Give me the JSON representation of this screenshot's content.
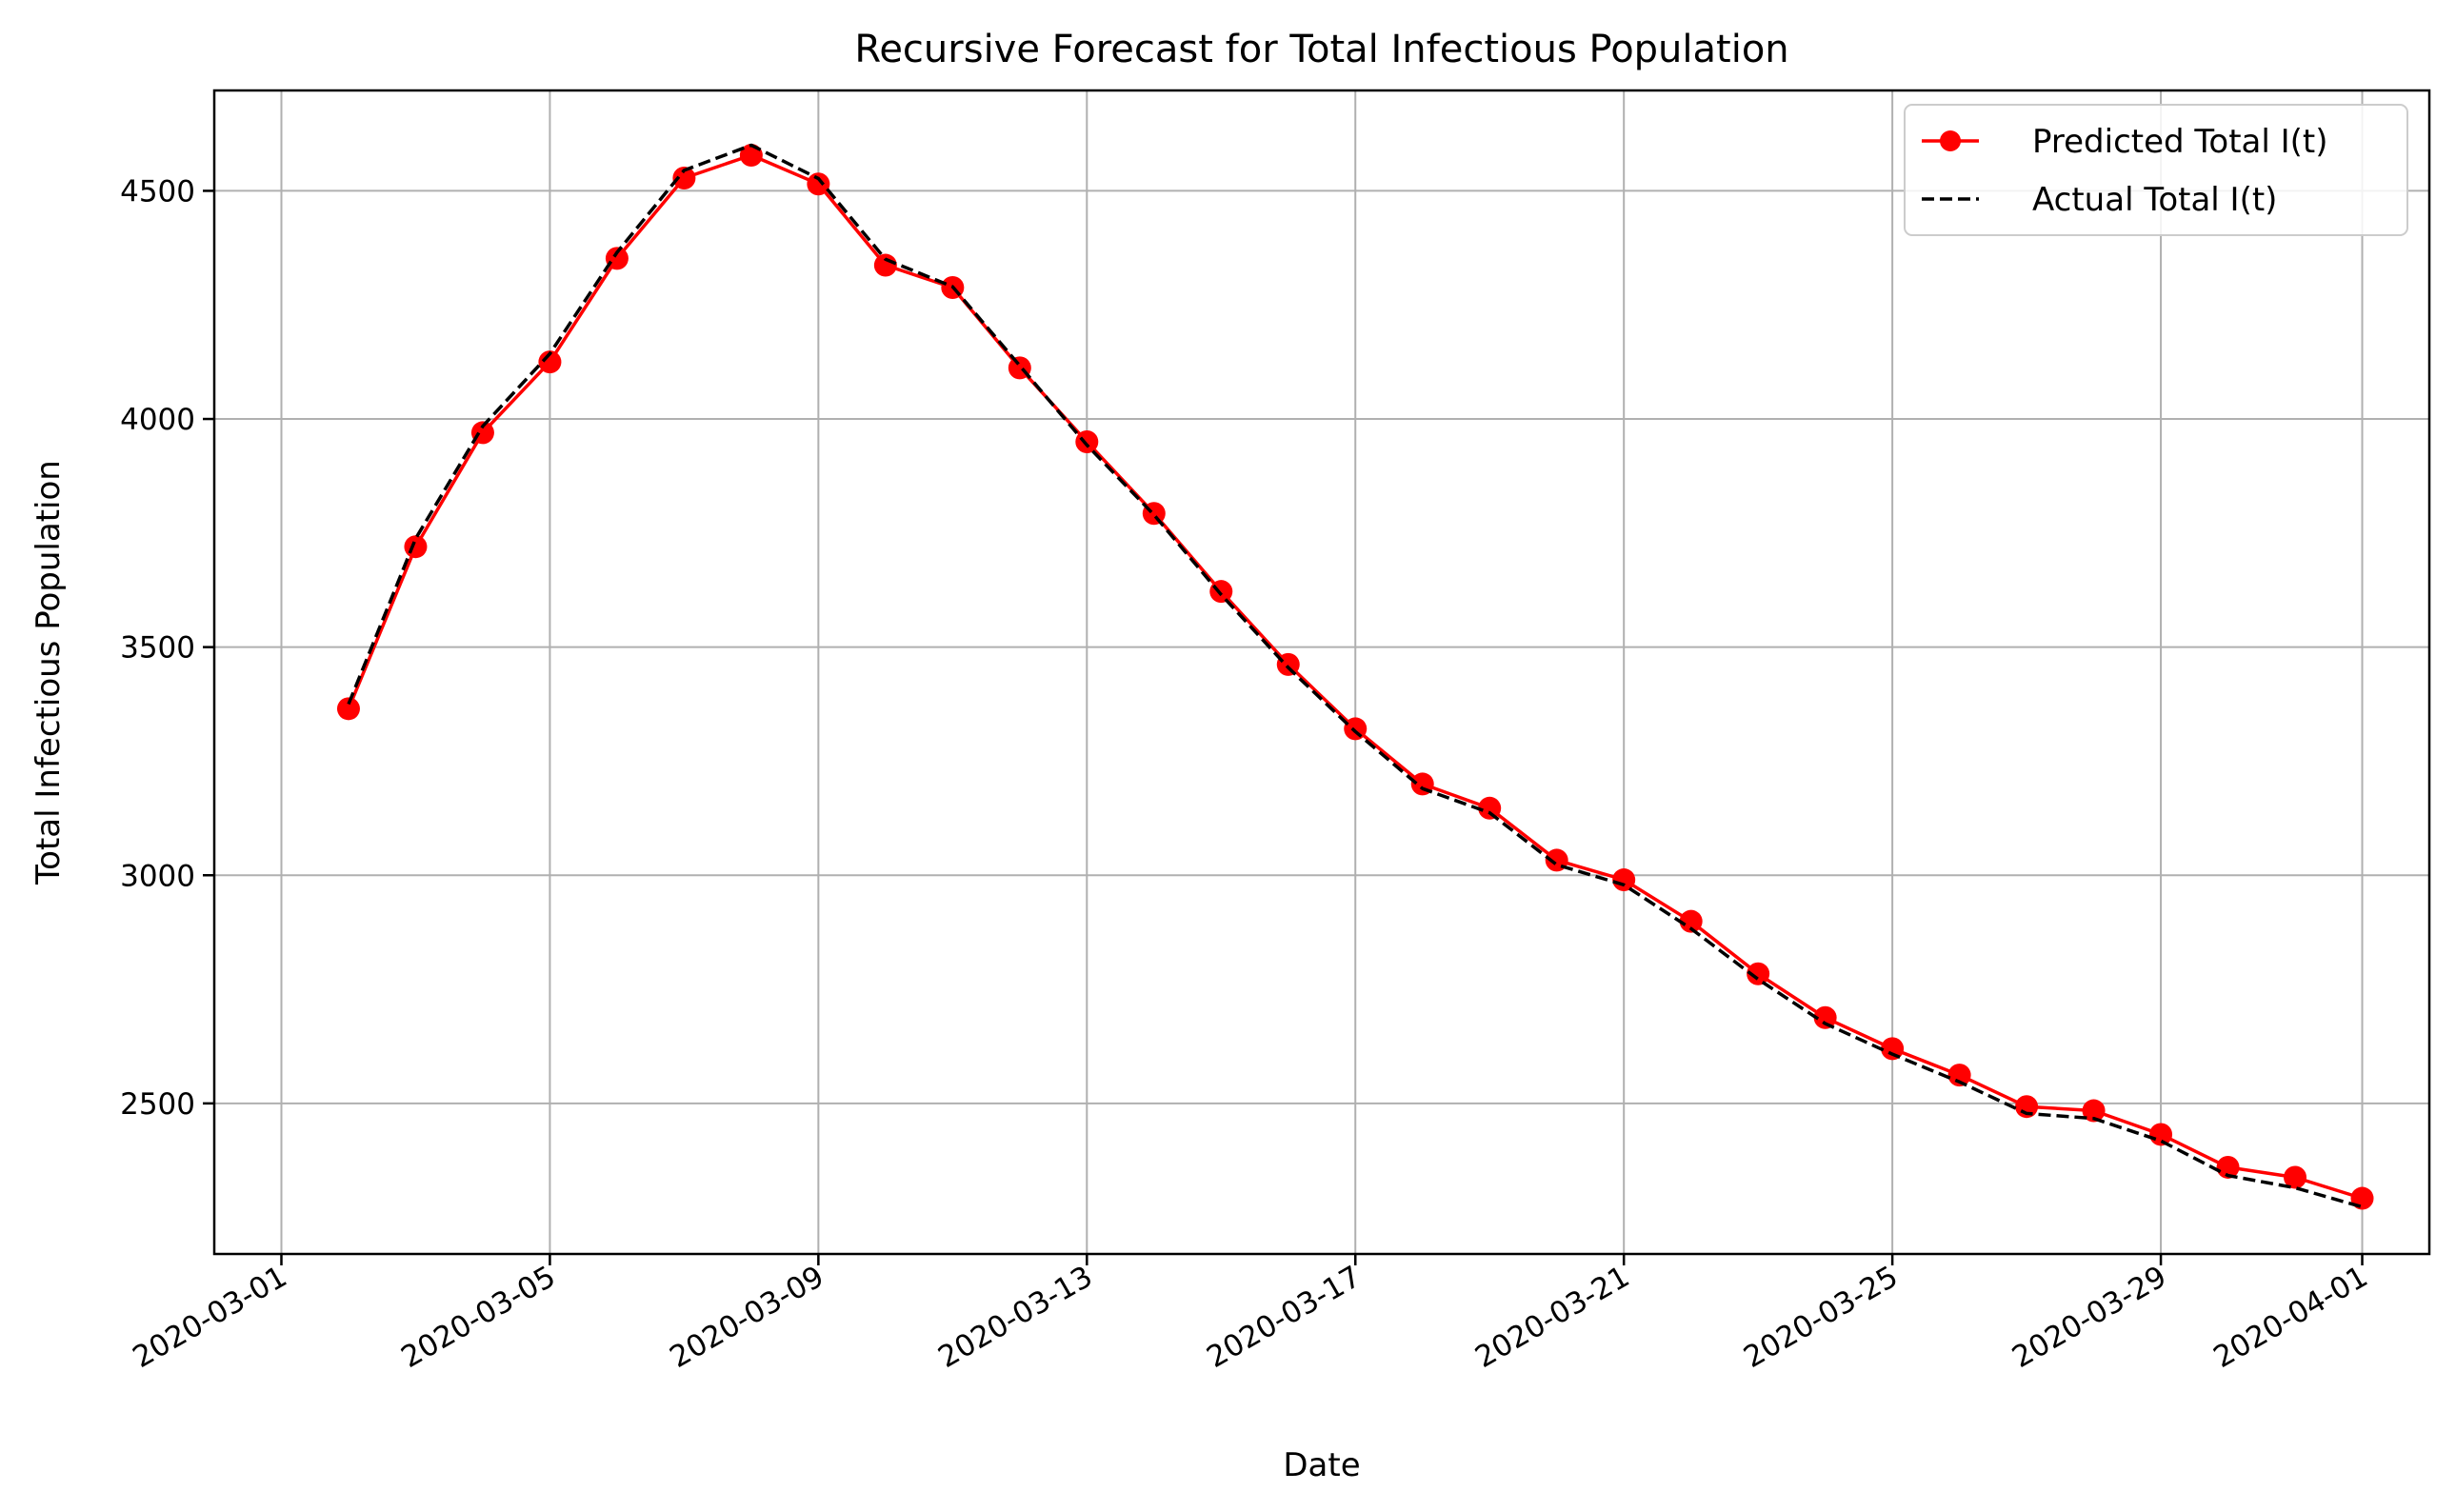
{
  "chart_data": {
    "type": "line",
    "title": "Recursive Forecast for Total Infectious Population",
    "xlabel": "Date",
    "ylabel": "Total Infectious Population",
    "x": [
      "2020-03-02",
      "2020-03-03",
      "2020-03-04",
      "2020-03-05",
      "2020-03-06",
      "2020-03-07",
      "2020-03-08",
      "2020-03-09",
      "2020-03-10",
      "2020-03-11",
      "2020-03-12",
      "2020-03-13",
      "2020-03-14",
      "2020-03-15",
      "2020-03-16",
      "2020-03-17",
      "2020-03-18",
      "2020-03-19",
      "2020-03-20",
      "2020-03-21",
      "2020-03-22",
      "2020-03-23",
      "2020-03-24",
      "2020-03-25",
      "2020-03-26",
      "2020-03-27",
      "2020-03-28",
      "2020-03-29",
      "2020-03-30",
      "2020-03-31",
      "2020-04-01"
    ],
    "series": [
      {
        "name": "Predicted Total I(t)",
        "color": "#ff0000",
        "style": "solid-with-markers",
        "values": [
          3365,
          3720,
          3970,
          4125,
          4352,
          4528,
          4578,
          4515,
          4337,
          4288,
          4112,
          3950,
          3793,
          3622,
          3462,
          3321,
          3200,
          3147,
          3033,
          2990,
          2899,
          2784,
          2688,
          2620,
          2562,
          2493,
          2484,
          2432,
          2360,
          2338,
          2292
        ]
      },
      {
        "name": "Actual Total I(t)",
        "color": "#000000",
        "style": "dashed",
        "values": [
          3375,
          3738,
          3984,
          4143,
          4365,
          4545,
          4600,
          4527,
          4350,
          4290,
          4117,
          3943,
          3790,
          3615,
          3455,
          3315,
          3190,
          3137,
          3023,
          2979,
          2883,
          2772,
          2675,
          2608,
          2547,
          2478,
          2467,
          2418,
          2342,
          2315,
          2273
        ]
      }
    ],
    "xticks": [
      "2020-03-01",
      "2020-03-05",
      "2020-03-09",
      "2020-03-13",
      "2020-03-17",
      "2020-03-21",
      "2020-03-25",
      "2020-03-29",
      "2020-04-01"
    ],
    "yticks": [
      2500,
      3000,
      3500,
      4000,
      4500
    ],
    "xlim": [
      "2020-02-29",
      "2020-04-02"
    ],
    "ylim": [
      2170,
      4720
    ],
    "grid": true,
    "legend_position": "top-right"
  }
}
